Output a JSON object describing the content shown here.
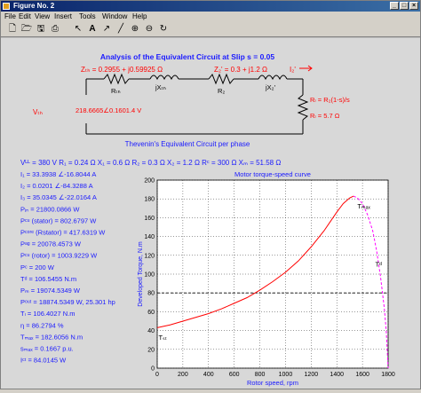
{
  "window": {
    "title": "Figure No. 2"
  },
  "menu": [
    "File",
    "Edit",
    "View",
    "Insert",
    "Tools",
    "Window",
    "Help"
  ],
  "toolbar": [
    "new-icon",
    "open-icon",
    "save-icon",
    "print-icon",
    "arrow-icon",
    "text-icon",
    "arrow-line-icon",
    "line-icon",
    "zoom-in-icon",
    "zoom-out-icon",
    "rotate-icon"
  ],
  "circuit": {
    "title": "Analysis of the Equivalent Circuit at Slip s = 0.05",
    "zth": "Zₜₕ = 0.2955 + j0.59925 Ω",
    "z2": "Z₂' = 0.3 + j1.2 Ω",
    "i2": "I₂'",
    "rth": "Rₜₕ",
    "xth": "jXₜₕ",
    "r2": "R₂",
    "x2": "jX₂'",
    "vth_label": "Vₜₕ",
    "vth": "218.6665∠0.1601.4 V",
    "rl_formula": "Rₗ = R₂(1-s)/s",
    "rl_value": "Rₗ = 5.7 Ω",
    "caption": "Thevenin's Equivalent Circuit per phase"
  },
  "params": "Vᴸᴸ = 380 V   R₁ = 0.24 Ω   X₁ = 0.6 Ω   R₂ = 0.3 Ω   X₂ = 1.2 Ω   Rᶜ = 300 Ω   Xₘ = 51.58 Ω",
  "results": [
    "I₁ = 33.3938 ∠-16.8044 A",
    "I₂ = 0.0201 ∠-84.3288 A",
    "I₃ = 35.0345 ∠-22.0164 A",
    "Pᵢₙ = 21800.0866 W",
    "Pᶜᵘ (stator) = 802.6797 W",
    "Pᶜᵒʳᵉ (Rstator) = 417.6319 W",
    "Pᵃᵍ = 20078.4573 W",
    "Pᶜᵘ (rotor) = 1003.9229 W",
    "Pᶜ = 200 W",
    "Tᵈ = 106.5455 N.m",
    "Pₘ = 19074.5349 W",
    "Pᵒᵘᵗ = 18874.5349 W, 25.301 hp",
    "Tₗ = 106.4027 N.m",
    "η = 86.2794 %",
    "Tₘₐₓ = 182.6056 N.m",
    "sₘₐₓ = 0.1667 p.u.",
    "Iᶜᵗ = 84.0145 W"
  ],
  "chart_data": {
    "type": "line",
    "title": "Motor torque-speed curve",
    "xlabel": "Rotor speed, rpm",
    "ylabel": "Developed Torque, N.m",
    "xlim": [
      0,
      1800
    ],
    "ylim": [
      0,
      200
    ],
    "xticks": [
      0,
      200,
      400,
      600,
      800,
      1000,
      1200,
      1400,
      1600,
      1800
    ],
    "yticks": [
      0,
      20,
      40,
      60,
      80,
      100,
      120,
      140,
      160,
      180,
      200
    ],
    "grid": true,
    "series": [
      {
        "color": "#ff0000",
        "x": [
          0,
          100,
          200,
          300,
          400,
          500,
          600,
          700,
          800,
          900,
          1000,
          1100,
          1200,
          1300,
          1400,
          1450,
          1500,
          1530
        ],
        "y": [
          43,
          46,
          50,
          54,
          58,
          63,
          69,
          75,
          83,
          92,
          102,
          114,
          129,
          146,
          166,
          175,
          181,
          183
        ]
      },
      {
        "color": "#ff00ff",
        "style": "dash",
        "x": [
          1530,
          1560,
          1600,
          1640,
          1680,
          1710,
          1740,
          1770,
          1785,
          1800
        ],
        "y": [
          183,
          181,
          175,
          163,
          146,
          125,
          98,
          64,
          40,
          0
        ]
      }
    ],
    "reference_line": {
      "y": 80,
      "color": "#000000",
      "style": "dash"
    },
    "annotations": {
      "tst": "Tₛₜ",
      "tmax": "Tₘₐₓ",
      "td": "Tᵈ"
    }
  }
}
